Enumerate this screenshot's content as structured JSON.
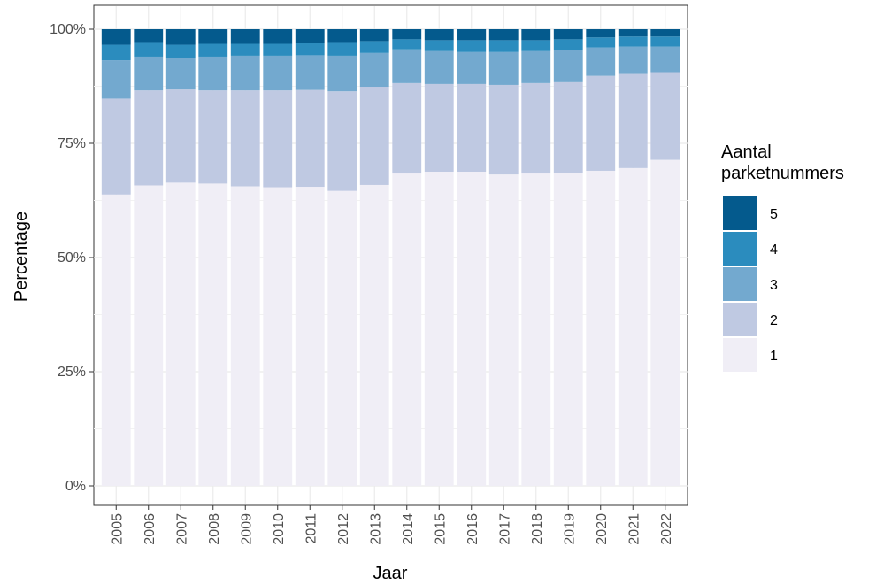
{
  "chart_data": {
    "type": "bar",
    "stacked": true,
    "percent": true,
    "xlabel": "Jaar",
    "ylabel": "Percentage",
    "ylim": [
      0,
      100
    ],
    "yticks": [
      "0%",
      "25%",
      "50%",
      "75%",
      "100%"
    ],
    "categories": [
      "2005",
      "2006",
      "2007",
      "2008",
      "2009",
      "2010",
      "2011",
      "2012",
      "2013",
      "2014",
      "2015",
      "2016",
      "2017",
      "2018",
      "2019",
      "2020",
      "2021",
      "2022"
    ],
    "legend": {
      "title": "Aantal parketnummers",
      "position": "right"
    },
    "grid": true,
    "series": [
      {
        "name": "1",
        "color": "#f0eef6",
        "values": [
          63.8,
          65.8,
          66.4,
          66.2,
          65.6,
          65.4,
          65.5,
          64.6,
          65.9,
          68.4,
          68.8,
          68.8,
          68.2,
          68.4,
          68.6,
          69.0,
          69.6,
          71.4
        ]
      },
      {
        "name": "2",
        "color": "#bfc9e2",
        "values": [
          21.0,
          20.8,
          20.4,
          20.4,
          21.0,
          21.2,
          21.2,
          21.8,
          21.5,
          19.8,
          19.2,
          19.2,
          19.6,
          19.8,
          19.8,
          20.8,
          20.6,
          19.2
        ]
      },
      {
        "name": "3",
        "color": "#73a9cf",
        "values": [
          8.4,
          7.4,
          7.0,
          7.4,
          7.6,
          7.6,
          7.6,
          7.8,
          7.4,
          7.4,
          7.2,
          7.0,
          7.2,
          7.0,
          7.0,
          6.2,
          6.0,
          5.6
        ]
      },
      {
        "name": "4",
        "color": "#2b8cbe",
        "values": [
          3.4,
          3.0,
          2.8,
          2.8,
          2.6,
          2.6,
          2.6,
          2.8,
          2.6,
          2.2,
          2.4,
          2.6,
          2.6,
          2.4,
          2.4,
          2.2,
          2.2,
          2.2
        ]
      },
      {
        "name": "5",
        "color": "#045a8d",
        "values": [
          3.4,
          3.0,
          3.4,
          3.2,
          3.2,
          3.2,
          3.1,
          3.0,
          2.6,
          2.2,
          2.4,
          2.4,
          2.4,
          2.4,
          2.2,
          1.8,
          1.6,
          1.6
        ]
      }
    ]
  }
}
